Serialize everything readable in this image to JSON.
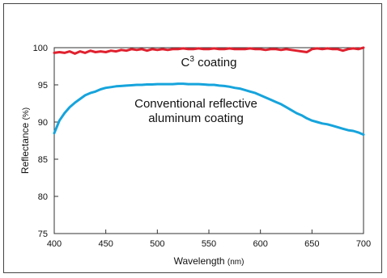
{
  "chart_data": {
    "type": "line",
    "title": "",
    "xlabel": "Wavelength",
    "xunit": "(nm)",
    "ylabel": "Reflectance",
    "yunit": "(%)",
    "xlim": [
      400,
      700
    ],
    "ylim": [
      75,
      100
    ],
    "xticks": [
      400,
      450,
      500,
      550,
      600,
      650,
      700
    ],
    "yticks": [
      75,
      80,
      85,
      90,
      95,
      100
    ],
    "grid": false,
    "series": [
      {
        "name": "C3 coating",
        "label_base": "C",
        "label_sup": "3",
        "label_rest": " coating",
        "color": "#e0202e",
        "x": [
          400,
          405,
          410,
          415,
          420,
          425,
          430,
          435,
          440,
          445,
          450,
          455,
          460,
          465,
          470,
          475,
          480,
          485,
          490,
          495,
          500,
          505,
          510,
          515,
          520,
          525,
          530,
          535,
          540,
          545,
          550,
          555,
          560,
          565,
          570,
          575,
          580,
          585,
          590,
          595,
          600,
          605,
          610,
          615,
          620,
          625,
          630,
          635,
          640,
          645,
          650,
          655,
          660,
          665,
          670,
          675,
          680,
          685,
          690,
          695,
          700
        ],
        "y": [
          99.3,
          99.4,
          99.3,
          99.5,
          99.2,
          99.5,
          99.3,
          99.6,
          99.4,
          99.5,
          99.4,
          99.6,
          99.5,
          99.7,
          99.6,
          99.8,
          99.7,
          99.8,
          99.6,
          99.8,
          99.7,
          99.8,
          99.7,
          99.8,
          99.8,
          99.9,
          99.8,
          99.8,
          99.9,
          99.8,
          99.8,
          99.9,
          99.8,
          99.8,
          99.9,
          99.8,
          99.8,
          99.8,
          99.9,
          99.8,
          99.8,
          99.7,
          99.8,
          99.8,
          99.7,
          99.8,
          99.7,
          99.6,
          99.5,
          99.4,
          99.8,
          99.9,
          99.8,
          99.9,
          99.8,
          99.8,
          99.6,
          99.8,
          99.9,
          99.8,
          100.0
        ]
      },
      {
        "name": "Conventional reflective aluminum coating",
        "label_lines": [
          "Conventional reflective",
          "aluminum coating"
        ],
        "color": "#16a4dc",
        "x": [
          400,
          405,
          410,
          415,
          420,
          425,
          430,
          435,
          440,
          445,
          450,
          455,
          460,
          465,
          470,
          475,
          480,
          485,
          490,
          495,
          500,
          505,
          510,
          515,
          520,
          525,
          530,
          535,
          540,
          545,
          550,
          555,
          560,
          565,
          570,
          575,
          580,
          585,
          590,
          595,
          600,
          605,
          610,
          615,
          620,
          625,
          630,
          635,
          640,
          645,
          650,
          655,
          660,
          665,
          670,
          675,
          680,
          685,
          690,
          695,
          700
        ],
        "y": [
          88.5,
          90.2,
          91.2,
          92.0,
          92.6,
          93.1,
          93.6,
          93.9,
          94.1,
          94.4,
          94.6,
          94.7,
          94.8,
          94.85,
          94.9,
          94.95,
          95.0,
          95.0,
          95.05,
          95.05,
          95.1,
          95.1,
          95.1,
          95.1,
          95.15,
          95.15,
          95.1,
          95.1,
          95.1,
          95.05,
          95.0,
          95.0,
          94.9,
          94.85,
          94.75,
          94.6,
          94.5,
          94.3,
          94.1,
          93.9,
          93.6,
          93.3,
          93.0,
          92.7,
          92.4,
          92.0,
          91.6,
          91.2,
          90.9,
          90.5,
          90.2,
          90.0,
          89.8,
          89.7,
          89.5,
          89.3,
          89.1,
          88.9,
          88.8,
          88.6,
          88.3
        ]
      }
    ]
  }
}
